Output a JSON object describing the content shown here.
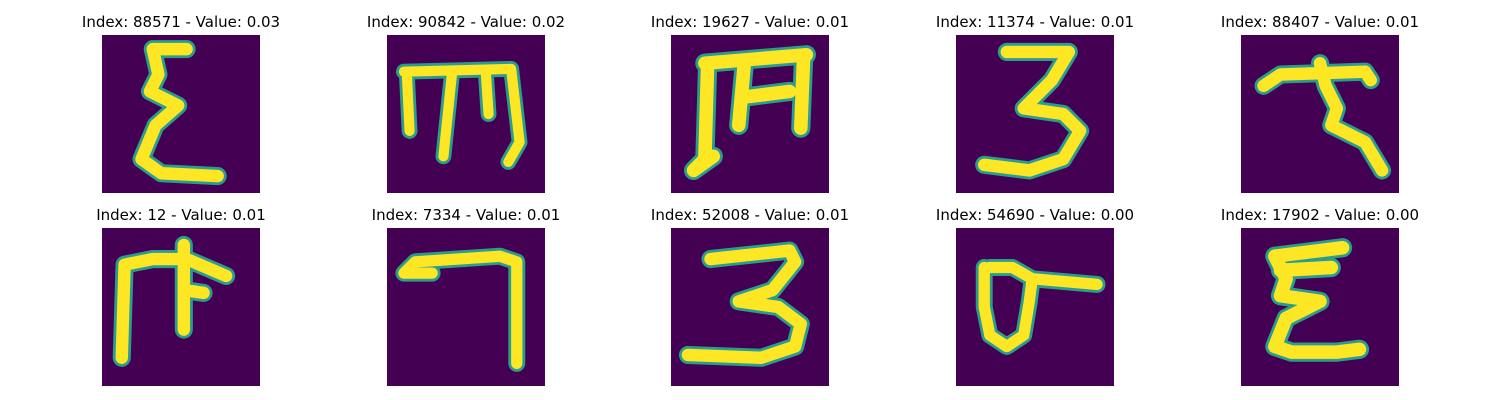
{
  "colors": {
    "background": "#440154",
    "stroke": "#fde725",
    "edge": "#2a9d8f"
  },
  "panels": [
    {
      "title": "Index: 88571 - Value: 0.03",
      "glyph": "sigma"
    },
    {
      "title": "Index: 90842 - Value: 0.02",
      "glyph": "m-hook"
    },
    {
      "title": "Index: 19627 - Value: 0.01",
      "glyph": "m-bar"
    },
    {
      "title": "Index: 11374 - Value: 0.01",
      "glyph": "three"
    },
    {
      "title": "Index: 88407 - Value: 0.01",
      "glyph": "seven-curl"
    },
    {
      "title": "Index: 12 - Value: 0.01",
      "glyph": "cross-f"
    },
    {
      "title": "Index: 7334 - Value: 0.01",
      "glyph": "seven"
    },
    {
      "title": "Index: 52008 - Value: 0.01",
      "glyph": "three-wide"
    },
    {
      "title": "Index: 54690 - Value: 0.00",
      "glyph": "loop-o"
    },
    {
      "title": "Index: 17902 - Value: 0.00",
      "glyph": "epsilon"
    }
  ]
}
